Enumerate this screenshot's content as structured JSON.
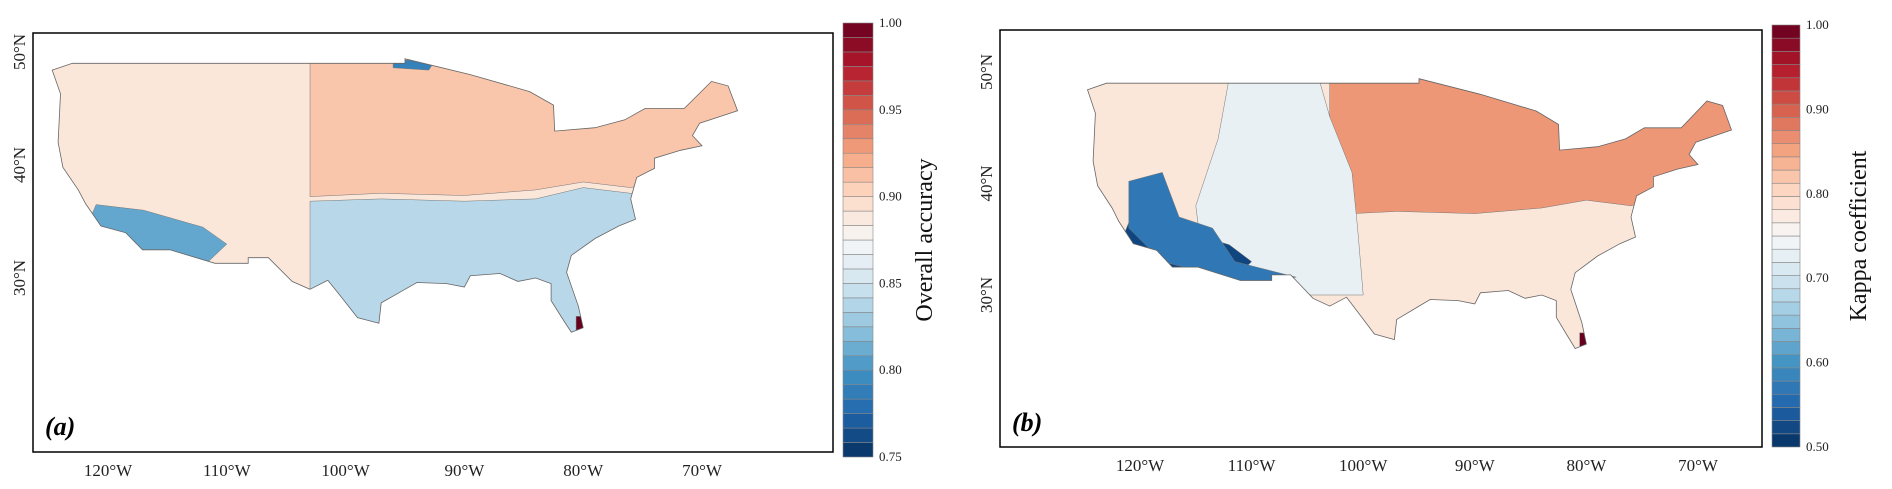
{
  "chart_data": [
    {
      "type": "heatmap",
      "panel_label": "(a)",
      "colorbar": {
        "label": "Overall accuracy",
        "range": [
          0.75,
          1.0
        ],
        "ticks": [
          "0.75",
          "0.80",
          "0.85",
          "0.90",
          "0.95",
          "1.00"
        ],
        "bands": 30,
        "colormap": "RdBu_r"
      },
      "x_ticks": [
        "120°W",
        "110°W",
        "100°W",
        "90°W",
        "80°W",
        "70°W"
      ],
      "y_ticks": [
        "30°N",
        "40°N",
        "50°N"
      ],
      "regions": [
        {
          "area": "base",
          "value": 0.89
        },
        {
          "area": "east-north",
          "value": 0.91
        },
        {
          "area": "southeast",
          "value": 0.84
        },
        {
          "area": "southwest",
          "value": 0.81
        },
        {
          "area": "north-border-patch",
          "value": 0.79
        },
        {
          "area": "florida-tip",
          "value": 1.0
        }
      ]
    },
    {
      "type": "heatmap",
      "panel_label": "(b)",
      "colorbar": {
        "label": "Kappa coefficient",
        "range": [
          0.5,
          1.0
        ],
        "ticks": [
          "0.50",
          "0.60",
          "0.70",
          "0.80",
          "0.90",
          "1.00"
        ],
        "bands": 32,
        "colormap": "RdBu_r"
      },
      "x_ticks": [
        "120°W",
        "110°W",
        "100°W",
        "90°W",
        "80°W",
        "70°W"
      ],
      "y_ticks": [
        "30°N",
        "40°N",
        "50°N"
      ],
      "regions": [
        {
          "area": "base",
          "value": 0.78
        },
        {
          "area": "east-north",
          "value": 0.86
        },
        {
          "area": "interior-west",
          "value": 0.73
        },
        {
          "area": "southwest",
          "value": 0.52
        },
        {
          "area": "west-patches",
          "value": 0.57
        },
        {
          "area": "florida-tip",
          "value": 1.0
        }
      ]
    }
  ]
}
